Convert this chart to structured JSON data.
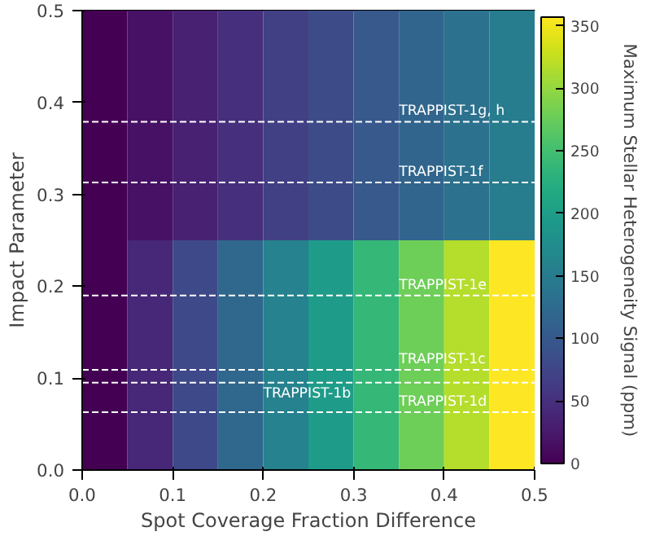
{
  "chart_data": {
    "type": "heatmap",
    "xlabel": "Spot Coverage Fraction Difference",
    "ylabel": "Impact Parameter",
    "clabel": "Maximum Stellar Heterogeneity Signal (ppm)",
    "cells": [
      [
        0,
        17,
        33,
        50,
        67,
        83,
        100,
        117,
        133,
        150
      ],
      [
        0,
        40,
        79,
        119,
        158,
        198,
        238,
        278,
        317,
        357
      ]
    ],
    "xlim": [
      0,
      0.5
    ],
    "xticks": [
      {
        "value": 0,
        "label": "0.0"
      },
      0.1,
      0.2,
      0.3,
      0.4,
      0.5
    ],
    "ylim": [
      0,
      0.5
    ],
    "yticks": [
      {
        "value": 0,
        "label": "0.0"
      },
      0.1,
      0.2,
      0.3,
      0.4,
      0.5
    ],
    "clim": [
      0,
      357
    ],
    "cticks": [
      0,
      50,
      100,
      150,
      200,
      250,
      300,
      350
    ],
    "ref_lines": [
      {
        "axis": "y",
        "value": 0.379,
        "label": "TRAPPIST-1g, h",
        "color": "#ffffff",
        "line_style": "dashed"
      },
      {
        "axis": "y",
        "value": 0.313,
        "label": "TRAPPIST-1f",
        "color": "#ffffff",
        "line_style": "dashed"
      },
      {
        "axis": "y",
        "value": 0.19,
        "label": "TRAPPIST-1e",
        "color": "#ffffff",
        "line_style": "dashed"
      },
      {
        "axis": "y",
        "value": 0.109,
        "label": "TRAPPIST-1c",
        "color": "#ffffff",
        "line_style": "dashed"
      },
      {
        "axis": "y",
        "value": 0.095,
        "label": "TRAPPIST-1b",
        "color": "#ffffff",
        "line_style": "dashed"
      },
      {
        "axis": "y",
        "value": 0.063,
        "label": "TRAPPIST-1d",
        "color": "#ffffff",
        "line_style": "dashed"
      }
    ],
    "grid": false
  }
}
